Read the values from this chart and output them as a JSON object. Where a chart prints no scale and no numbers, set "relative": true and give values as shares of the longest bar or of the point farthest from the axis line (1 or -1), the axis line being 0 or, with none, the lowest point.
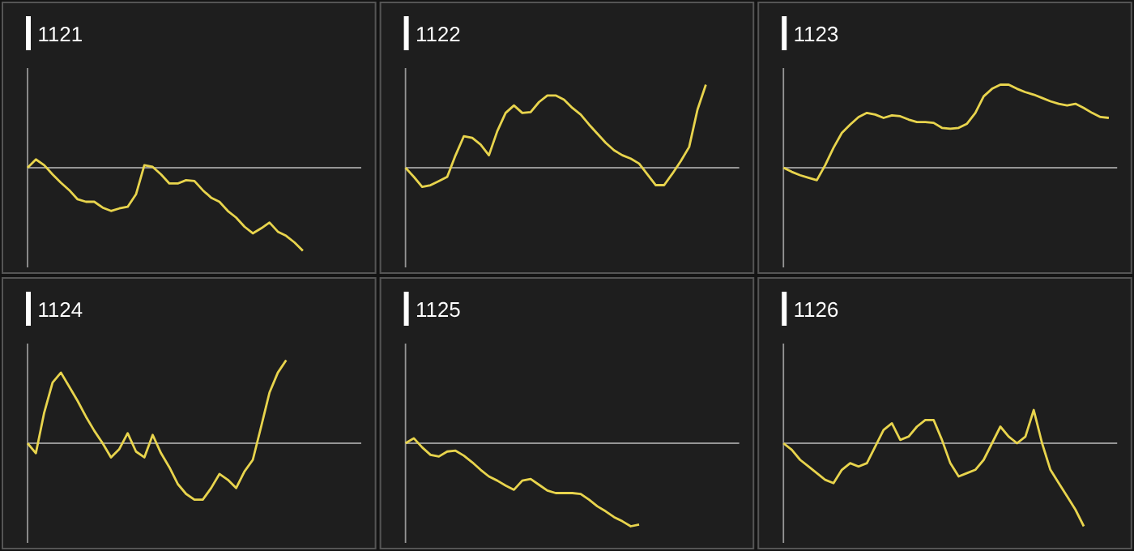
{
  "chart_data": [
    {
      "type": "line",
      "title": "1121",
      "relative": true,
      "color": "#e8d44d",
      "categories": [
        null,
        null,
        null,
        null,
        null,
        null,
        null,
        null,
        null,
        null,
        null,
        null,
        null,
        null,
        null,
        null,
        null,
        null,
        null,
        null,
        null,
        null,
        null,
        null,
        null,
        null,
        null,
        null,
        null,
        null,
        null,
        null,
        null,
        null,
        null,
        null,
        null,
        null,
        null,
        null,
        null
      ],
      "values": [
        0,
        0.1,
        0.03,
        -0.08,
        -0.18,
        -0.27,
        -0.38,
        -0.41,
        -0.41,
        -0.48,
        -0.52,
        -0.49,
        -0.47,
        -0.32,
        0.03,
        0.01,
        -0.08,
        -0.19,
        -0.19,
        -0.15,
        -0.16,
        -0.27,
        -0.36,
        -0.41,
        -0.52,
        -0.6,
        -0.71,
        -0.79,
        -0.73,
        -0.66,
        -0.77,
        -0.82,
        -0.9,
        -1,
        null,
        null,
        null,
        null,
        null,
        null,
        null
      ]
    },
    {
      "type": "line",
      "title": "1122",
      "relative": true,
      "color": "#e8d44d",
      "categories": [
        null,
        null,
        null,
        null,
        null,
        null,
        null,
        null,
        null,
        null,
        null,
        null,
        null,
        null,
        null,
        null,
        null,
        null,
        null,
        null,
        null,
        null,
        null,
        null,
        null,
        null,
        null,
        null,
        null,
        null,
        null,
        null,
        null,
        null,
        null,
        null,
        null,
        null,
        null,
        null,
        null
      ],
      "values": [
        0,
        -0.11,
        -0.23,
        -0.21,
        -0.16,
        -0.11,
        0.15,
        0.38,
        0.36,
        0.28,
        0.15,
        0.44,
        0.66,
        0.75,
        0.66,
        0.67,
        0.79,
        0.87,
        0.87,
        0.82,
        0.72,
        0.64,
        0.52,
        0.41,
        0.3,
        0.21,
        0.15,
        0.11,
        0.05,
        -0.08,
        -0.21,
        -0.21,
        -0.07,
        0.08,
        0.25,
        0.7,
        1,
        null,
        null,
        null,
        null
      ]
    },
    {
      "type": "line",
      "title": "1123",
      "relative": true,
      "color": "#e8d44d",
      "categories": [
        null,
        null,
        null,
        null,
        null,
        null,
        null,
        null,
        null,
        null,
        null,
        null,
        null,
        null,
        null,
        null,
        null,
        null,
        null,
        null,
        null,
        null,
        null,
        null,
        null,
        null,
        null,
        null,
        null,
        null,
        null,
        null,
        null,
        null,
        null,
        null,
        null,
        null,
        null,
        null,
        null
      ],
      "values": [
        0,
        -0.05,
        -0.09,
        -0.12,
        -0.15,
        0.03,
        0.24,
        0.42,
        0.52,
        0.61,
        0.66,
        0.64,
        0.6,
        0.63,
        0.62,
        0.58,
        0.55,
        0.55,
        0.54,
        0.48,
        0.47,
        0.48,
        0.53,
        0.66,
        0.86,
        0.95,
        1,
        1,
        0.95,
        0.91,
        0.88,
        0.84,
        0.8,
        0.77,
        0.75,
        0.77,
        0.72,
        0.66,
        0.61,
        0.6,
        null
      ]
    },
    {
      "type": "line",
      "title": "1124",
      "relative": true,
      "color": "#e8d44d",
      "categories": [
        null,
        null,
        null,
        null,
        null,
        null,
        null,
        null,
        null,
        null,
        null,
        null,
        null,
        null,
        null,
        null,
        null,
        null,
        null,
        null,
        null,
        null,
        null,
        null,
        null,
        null,
        null,
        null,
        null,
        null,
        null,
        null,
        null,
        null,
        null,
        null,
        null,
        null,
        null,
        null,
        null
      ],
      "values": [
        0,
        -0.12,
        0.37,
        0.73,
        0.85,
        0.68,
        0.51,
        0.32,
        0.15,
        0,
        -0.17,
        -0.07,
        0.12,
        -0.1,
        -0.17,
        0.1,
        -0.12,
        -0.29,
        -0.49,
        -0.61,
        -0.68,
        -0.68,
        -0.54,
        -0.37,
        -0.44,
        -0.54,
        -0.34,
        -0.2,
        0.2,
        0.61,
        0.85,
        1,
        null,
        null,
        null,
        null,
        null,
        null,
        null,
        null,
        null
      ]
    },
    {
      "type": "line",
      "title": "1125",
      "relative": true,
      "color": "#e8d44d",
      "categories": [
        null,
        null,
        null,
        null,
        null,
        null,
        null,
        null,
        null,
        null,
        null,
        null,
        null,
        null,
        null,
        null,
        null,
        null,
        null,
        null,
        null,
        null,
        null,
        null,
        null,
        null,
        null,
        null,
        null,
        null,
        null,
        null,
        null,
        null,
        null,
        null,
        null,
        null,
        null,
        null,
        null
      ],
      "values": [
        0,
        0.06,
        -0.05,
        -0.14,
        -0.16,
        -0.1,
        -0.09,
        -0.15,
        -0.23,
        -0.32,
        -0.4,
        -0.45,
        -0.51,
        -0.56,
        -0.45,
        -0.43,
        -0.5,
        -0.57,
        -0.6,
        -0.6,
        -0.6,
        -0.61,
        -0.68,
        -0.76,
        -0.82,
        -0.89,
        -0.94,
        -1,
        -0.98,
        null,
        null,
        null,
        null,
        null,
        null,
        null,
        null,
        null,
        null,
        null,
        null
      ]
    },
    {
      "type": "line",
      "title": "1126",
      "relative": true,
      "color": "#e8d44d",
      "categories": [
        null,
        null,
        null,
        null,
        null,
        null,
        null,
        null,
        null,
        null,
        null,
        null,
        null,
        null,
        null,
        null,
        null,
        null,
        null,
        null,
        null,
        null,
        null,
        null,
        null,
        null,
        null,
        null,
        null,
        null,
        null,
        null,
        null,
        null,
        null,
        null,
        null,
        null,
        null,
        null,
        null
      ],
      "values": [
        0,
        -0.08,
        -0.2,
        -0.28,
        -0.36,
        -0.44,
        -0.48,
        -0.32,
        -0.24,
        -0.28,
        -0.24,
        -0.04,
        0.16,
        0.24,
        0.04,
        0.08,
        0.2,
        0.28,
        0.28,
        0.04,
        -0.24,
        -0.4,
        -0.36,
        -0.32,
        -0.2,
        0,
        0.2,
        0.08,
        0,
        0.08,
        0.4,
        0,
        -0.32,
        -0.48,
        -0.64,
        -0.8,
        -1,
        null,
        null,
        null,
        null
      ]
    }
  ]
}
